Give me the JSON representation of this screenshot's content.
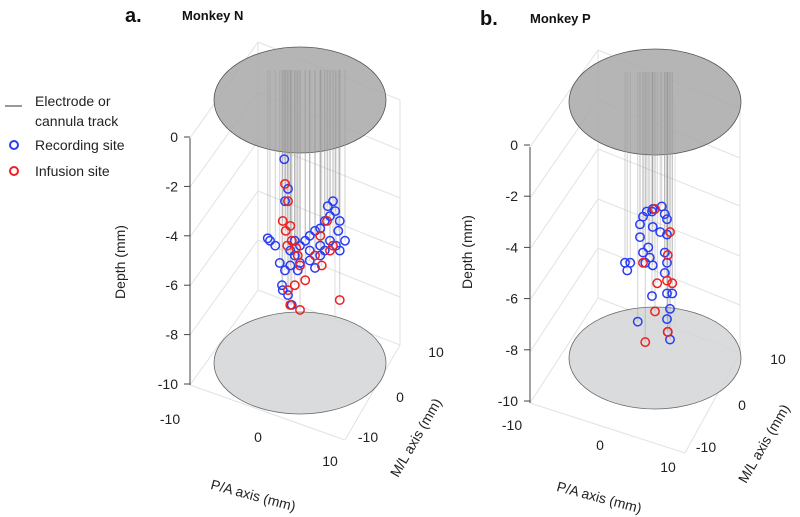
{
  "legend": {
    "track_line1": "Electrode or",
    "track_line2": "cannula track",
    "recording": "Recording site",
    "infusion": "Infusion site"
  },
  "colors": {
    "recording": "#2a3df5",
    "infusion": "#f02020",
    "track": "#999999",
    "disk": "#a8a8a8"
  },
  "chart_data": [
    {
      "type": "scatter",
      "panel_label": "a.",
      "title": "Monkey N",
      "xlabel": "P/A axis (mm)",
      "ylabel": "M/L axis (mm)",
      "zlabel": "Depth (mm)",
      "xlim": [
        -10,
        10
      ],
      "ylim": [
        -10,
        10
      ],
      "zlim": [
        -10,
        0
      ],
      "xticks": [
        "-10",
        "0",
        "10"
      ],
      "yticks": [
        "-10",
        "0",
        "10"
      ],
      "zticks": [
        "0",
        "-2",
        "-4",
        "-6",
        "-8",
        "-10"
      ],
      "grid": true,
      "series": [
        {
          "name": "Recording site",
          "points": [
            [
              -4.0,
              0,
              -4.2
            ],
            [
              -3.3,
              0,
              -4.4
            ],
            [
              -4.3,
              0,
              -4.1
            ],
            [
              -2.7,
              0,
              -5.1
            ],
            [
              -2.0,
              0,
              -5.4
            ],
            [
              -1.3,
              0,
              -4.6
            ],
            [
              -0.7,
              0,
              -4.8
            ],
            [
              0,
              0,
              -4.4
            ],
            [
              0.7,
              0,
              -4.2
            ],
            [
              1.3,
              0,
              -4.0
            ],
            [
              2.0,
              0,
              -3.8
            ],
            [
              2.7,
              0,
              -3.7
            ],
            [
              3.3,
              0,
              -3.4
            ],
            [
              4.0,
              0,
              -3.2
            ],
            [
              4.7,
              0,
              -3.0
            ],
            [
              4.4,
              0,
              -2.6
            ],
            [
              3.7,
              0,
              -2.8
            ],
            [
              5.1,
              0,
              -3.8
            ],
            [
              6.0,
              0,
              -4.2
            ],
            [
              5.3,
              0,
              -4.6
            ],
            [
              2.7,
              0,
              -4.8
            ],
            [
              1.3,
              0,
              -5.0
            ],
            [
              0,
              0,
              -5.1
            ],
            [
              -1.3,
              0,
              -5.2
            ],
            [
              -2.3,
              0,
              -6.2
            ],
            [
              -1.6,
              0,
              -6.4
            ],
            [
              -1.1,
              0,
              -6.8
            ],
            [
              2.7,
              0,
              -4.4
            ],
            [
              3.3,
              0,
              -4.6
            ],
            [
              4.0,
              0,
              -4.2
            ],
            [
              2.0,
              0,
              -5.3
            ],
            [
              1.3,
              0,
              -4.6
            ],
            [
              -2.0,
              0,
              -2.6
            ],
            [
              -1.6,
              0,
              -2.1
            ],
            [
              -2.1,
              0,
              -0.9
            ],
            [
              -2.4,
              0,
              -6.0
            ],
            [
              -0.7,
              0,
              -4.2
            ],
            [
              -0.3,
              0,
              -5.4
            ],
            [
              5.3,
              0,
              -3.4
            ],
            [
              4.8,
              0,
              -4.4
            ]
          ]
        },
        {
          "name": "Infusion site",
          "points": [
            [
              -2.0,
              0,
              -1.9
            ],
            [
              -1.6,
              0,
              -2.6
            ],
            [
              -2.3,
              0,
              -3.4
            ],
            [
              -1.9,
              0,
              -3.8
            ],
            [
              -1.3,
              0,
              -3.6
            ],
            [
              -1.7,
              0,
              -4.4
            ],
            [
              -1.1,
              0,
              -4.2
            ],
            [
              -0.3,
              0,
              -4.8
            ],
            [
              -0.5,
              0,
              -4.5
            ],
            [
              0,
              0,
              -5.2
            ],
            [
              0.7,
              0,
              -5.8
            ],
            [
              -0.7,
              0,
              -6.0
            ],
            [
              -1.6,
              0,
              -6.2
            ],
            [
              0,
              0,
              -7.0
            ],
            [
              -1.3,
              0,
              -6.8
            ],
            [
              2.7,
              0,
              -4.0
            ],
            [
              3.6,
              0,
              -3.4
            ],
            [
              4.4,
              0,
              -4.4
            ],
            [
              4.0,
              0,
              -4.6
            ],
            [
              5.3,
              0,
              -6.6
            ],
            [
              2.9,
              0,
              -5.2
            ],
            [
              2.0,
              0,
              -4.8
            ]
          ]
        }
      ]
    },
    {
      "type": "scatter",
      "panel_label": "b.",
      "title": "Monkey P",
      "xlabel": "P/A axis (mm)",
      "ylabel": "M/L axis (mm)",
      "zlabel": "Depth (mm)",
      "xlim": [
        -10,
        10
      ],
      "ylim": [
        -10,
        10
      ],
      "zlim": [
        -10,
        0
      ],
      "xticks": [
        "-10",
        "0",
        "10"
      ],
      "yticks": [
        "-10",
        "0",
        "10"
      ],
      "zticks": [
        "0",
        "-2",
        "-4",
        "-6",
        "-8",
        "-10"
      ],
      "grid": true,
      "series": [
        {
          "name": "Recording site",
          "points": [
            [
              -4.0,
              0,
              -4.6
            ],
            [
              -3.3,
              0,
              -4.6
            ],
            [
              -3.7,
              0,
              -4.9
            ],
            [
              -2.0,
              0,
              -3.1
            ],
            [
              -2.0,
              0,
              -3.6
            ],
            [
              -1.6,
              0,
              -2.8
            ],
            [
              -1.1,
              0,
              -2.6
            ],
            [
              -0.4,
              0,
              -2.6
            ],
            [
              -0.3,
              0,
              -2.5
            ],
            [
              0.9,
              0,
              -2.4
            ],
            [
              1.3,
              0,
              -2.7
            ],
            [
              1.6,
              0,
              -2.9
            ],
            [
              0.7,
              0,
              -3.4
            ],
            [
              1.6,
              0,
              -3.5
            ],
            [
              -0.9,
              0,
              -4.0
            ],
            [
              -1.6,
              0,
              -4.2
            ],
            [
              -0.7,
              0,
              -4.4
            ],
            [
              -1.3,
              0,
              -4.6
            ],
            [
              -0.3,
              0,
              -4.7
            ],
            [
              1.3,
              0,
              -4.2
            ],
            [
              1.6,
              0,
              -4.6
            ],
            [
              1.3,
              0,
              -5.0
            ],
            [
              1.6,
              0,
              -5.8
            ],
            [
              2.3,
              0,
              -5.8
            ],
            [
              2.0,
              0,
              -6.4
            ],
            [
              1.6,
              0,
              -6.8
            ],
            [
              1.7,
              0,
              -7.3
            ],
            [
              2.0,
              0,
              -7.6
            ],
            [
              -0.4,
              0,
              -5.9
            ],
            [
              -2.3,
              0,
              -6.9
            ],
            [
              -0.3,
              0,
              -3.2
            ]
          ]
        },
        {
          "name": "Infusion site",
          "points": [
            [
              0,
              0,
              -2.5
            ],
            [
              2.0,
              0,
              -3.4
            ],
            [
              1.7,
              0,
              -4.3
            ],
            [
              1.6,
              0,
              -5.3
            ],
            [
              2.3,
              0,
              -5.4
            ],
            [
              0.3,
              0,
              -5.4
            ],
            [
              0,
              0,
              -6.5
            ],
            [
              1.7,
              0,
              -7.3
            ],
            [
              -1.3,
              0,
              -7.7
            ],
            [
              -1.6,
              0,
              -4.6
            ]
          ]
        }
      ]
    }
  ]
}
